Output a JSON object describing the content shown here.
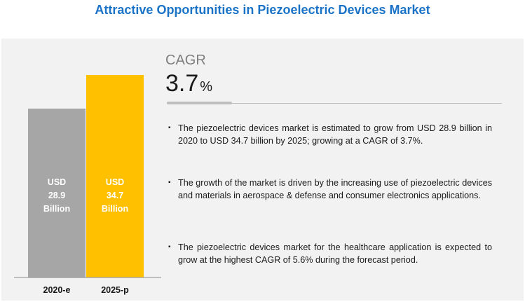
{
  "page": {
    "title": "Attractive Opportunities in Piezoelectric Devices Market"
  },
  "cagr": {
    "label": "CAGR",
    "value": "3.7",
    "unit": "%"
  },
  "bullets": [
    "The piezoelectric devices market is estimated to grow from USD 28.9 billion in 2020 to USD 34.7 billion by 2025; growing at a CAGR of 3.7%.",
    "The growth of the market is driven by the increasing use of piezoelectric devices and materials in aerospace & defense and consumer electronics applications.",
    "The piezoelectric devices market for the healthcare application is expected to grow at the highest CAGR of 5.6% during the forecast period."
  ],
  "chart_data": {
    "type": "bar",
    "categories": [
      "2020-e",
      "2025-p"
    ],
    "values": [
      28.9,
      34.7
    ],
    "bar_labels": [
      [
        "USD",
        "28.9",
        "Billion"
      ],
      [
        "USD",
        "34.7",
        "Billion"
      ]
    ],
    "colors": [
      "#a6a6a6",
      "#ffc000"
    ],
    "unit": "USD Billion",
    "ylim": [
      0,
      34.7
    ],
    "grid": false,
    "legend": "none",
    "title": "",
    "xlabel": "",
    "ylabel": ""
  },
  "colors": {
    "title": "#1a73c7",
    "panel_background": "#f2f2f2",
    "bar_2020": "#a6a6a6",
    "bar_2025": "#ffc000"
  }
}
